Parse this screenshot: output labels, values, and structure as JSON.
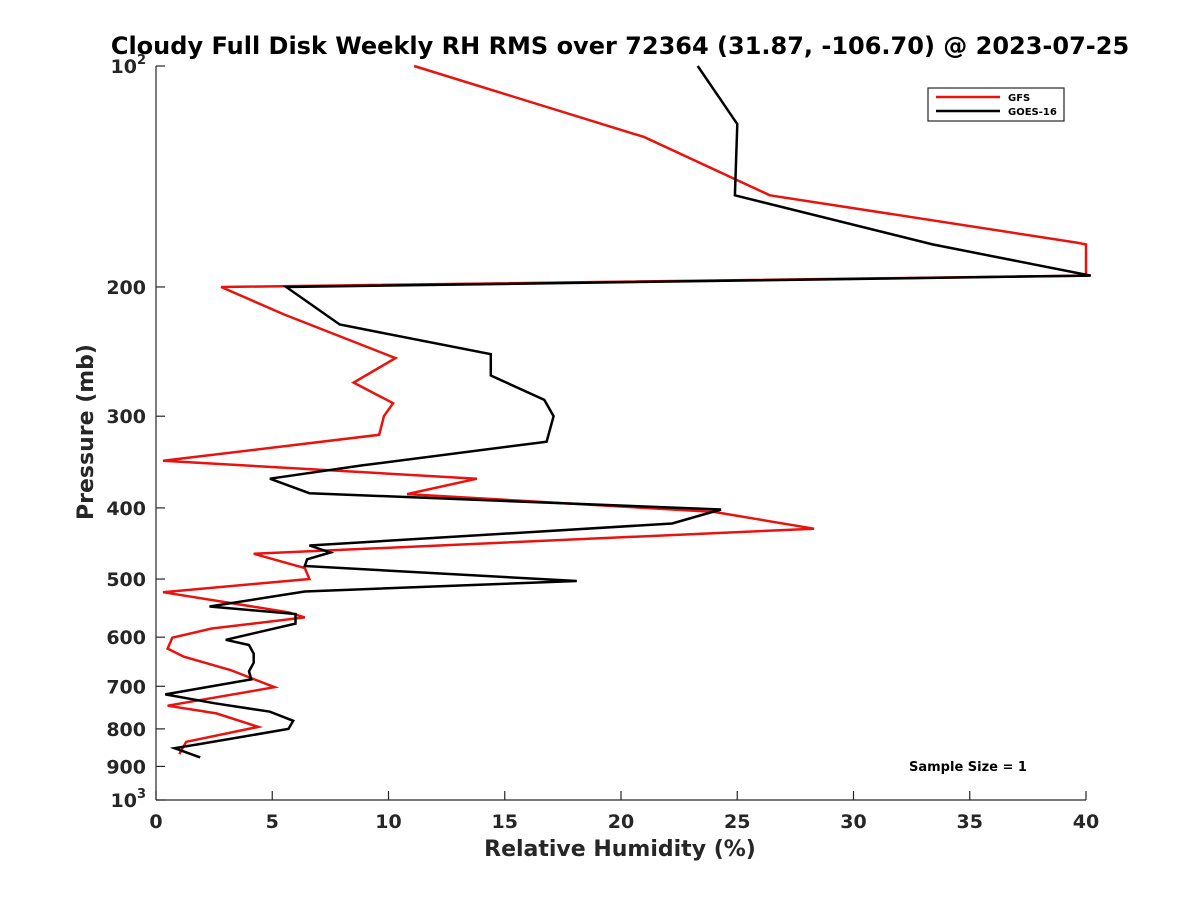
{
  "chart_data": {
    "type": "line",
    "title": "Cloudy Full Disk Weekly RH RMS over 72364 (31.87, -106.70) @ 2023-07-25",
    "xlabel": "Relative Humidity (%)",
    "ylabel": "Pressure (mb)",
    "xlim": [
      0,
      40
    ],
    "ylim": [
      100,
      1000
    ],
    "yscale": "log",
    "y_reversed": true,
    "x_ticks": [
      "0",
      "5",
      "10",
      "15",
      "20",
      "25",
      "30",
      "35",
      "40"
    ],
    "y_ticks": [
      {
        "value": 100,
        "label": "10",
        "sup": "2"
      },
      {
        "value": 200,
        "label": "200",
        "sup": ""
      },
      {
        "value": 300,
        "label": "300",
        "sup": ""
      },
      {
        "value": 400,
        "label": "400",
        "sup": ""
      },
      {
        "value": 500,
        "label": "500",
        "sup": ""
      },
      {
        "value": 600,
        "label": "600",
        "sup": ""
      },
      {
        "value": 700,
        "label": "700",
        "sup": ""
      },
      {
        "value": 800,
        "label": "800",
        "sup": ""
      },
      {
        "value": 900,
        "label": "900",
        "sup": ""
      },
      {
        "value": 1000,
        "label": "10",
        "sup": "3"
      }
    ],
    "grid": false,
    "legend_position": "top-right",
    "annotation": "Sample Size = 1",
    "series": [
      {
        "name": "GFS",
        "color": "#e8130f",
        "points": [
          [
            11.1,
            100
          ],
          [
            21.0,
            125
          ],
          [
            26.4,
            150
          ],
          [
            39.6,
            174
          ],
          [
            40.0,
            175
          ],
          [
            40.0,
            193
          ],
          [
            2.8,
            200
          ],
          [
            5.5,
            218
          ],
          [
            10.3,
            250
          ],
          [
            8.5,
            270
          ],
          [
            10.2,
            288
          ],
          [
            9.8,
            300
          ],
          [
            9.6,
            318
          ],
          [
            0.3,
            345
          ],
          [
            13.8,
            365
          ],
          [
            10.8,
            383
          ],
          [
            24.0,
            405
          ],
          [
            28.3,
            427
          ],
          [
            4.2,
            462
          ],
          [
            6.4,
            483
          ],
          [
            6.6,
            500
          ],
          [
            0.3,
            521
          ],
          [
            5.7,
            555
          ],
          [
            6.4,
            564
          ],
          [
            2.4,
            584
          ],
          [
            0.7,
            601
          ],
          [
            0.5,
            622
          ],
          [
            1.2,
            638
          ],
          [
            3.2,
            665
          ],
          [
            5.1,
            702
          ],
          [
            0.5,
            744
          ],
          [
            2.6,
            762
          ],
          [
            4.4,
            795
          ],
          [
            1.3,
            833
          ],
          [
            1.0,
            866
          ]
        ]
      },
      {
        "name": "GOES-16",
        "color": "#000000",
        "points": [
          [
            23.3,
            100
          ],
          [
            25.0,
            120
          ],
          [
            24.9,
            150
          ],
          [
            33.4,
            175
          ],
          [
            40.2,
            193
          ],
          [
            5.6,
            200
          ],
          [
            7.9,
            225
          ],
          [
            14.4,
            247
          ],
          [
            14.4,
            264
          ],
          [
            16.7,
            285
          ],
          [
            17.1,
            300
          ],
          [
            16.8,
            325
          ],
          [
            8.9,
            350
          ],
          [
            4.9,
            365
          ],
          [
            6.6,
            382
          ],
          [
            24.3,
            402
          ],
          [
            22.2,
            420
          ],
          [
            6.6,
            450
          ],
          [
            7.5,
            460
          ],
          [
            6.5,
            470
          ],
          [
            6.4,
            480
          ],
          [
            18.1,
            503
          ],
          [
            6.4,
            520
          ],
          [
            2.3,
            545
          ],
          [
            6.0,
            558
          ],
          [
            6.0,
            575
          ],
          [
            3.0,
            605
          ],
          [
            4.0,
            615
          ],
          [
            4.2,
            632
          ],
          [
            4.2,
            650
          ],
          [
            4.0,
            668
          ],
          [
            4.1,
            685
          ],
          [
            0.4,
            718
          ],
          [
            2.5,
            738
          ],
          [
            4.9,
            758
          ],
          [
            5.9,
            780
          ],
          [
            5.7,
            800
          ],
          [
            1.8,
            840
          ],
          [
            0.8,
            850
          ],
          [
            1.9,
            875
          ]
        ]
      }
    ]
  }
}
